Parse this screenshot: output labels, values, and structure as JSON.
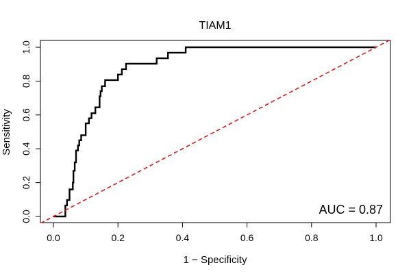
{
  "chart_data": {
    "type": "line",
    "title": "TIAM1",
    "xlabel": "1 − Specificity",
    "ylabel": "Sensitivity",
    "xlim": [
      0.0,
      1.0
    ],
    "ylim": [
      0.0,
      1.0
    ],
    "xticks": [
      "0.0",
      "0.2",
      "0.4",
      "0.6",
      "0.8",
      "1.0"
    ],
    "yticks": [
      "0.0",
      "0.2",
      "0.4",
      "0.6",
      "0.8",
      "1.0"
    ],
    "annotation": "AUC = 0.87",
    "series": [
      {
        "name": "ROC curve",
        "color": "#000000",
        "style": "solid",
        "x": [
          0.0,
          0.037,
          0.037,
          0.042,
          0.042,
          0.05,
          0.05,
          0.06,
          0.06,
          0.062,
          0.062,
          0.066,
          0.066,
          0.07,
          0.07,
          0.076,
          0.076,
          0.08,
          0.08,
          0.086,
          0.086,
          0.1,
          0.1,
          0.11,
          0.11,
          0.118,
          0.118,
          0.13,
          0.13,
          0.143,
          0.143,
          0.146,
          0.146,
          0.15,
          0.15,
          0.16,
          0.16,
          0.2,
          0.2,
          0.212,
          0.212,
          0.225,
          0.225,
          0.32,
          0.32,
          0.355,
          0.355,
          0.41,
          0.41,
          1.0
        ],
        "y": [
          0.0,
          0.0,
          0.065,
          0.065,
          0.097,
          0.097,
          0.16,
          0.16,
          0.2,
          0.2,
          0.27,
          0.27,
          0.32,
          0.32,
          0.39,
          0.39,
          0.42,
          0.42,
          0.45,
          0.45,
          0.48,
          0.48,
          0.55,
          0.55,
          0.58,
          0.58,
          0.61,
          0.61,
          0.645,
          0.645,
          0.71,
          0.71,
          0.74,
          0.74,
          0.77,
          0.77,
          0.806,
          0.806,
          0.839,
          0.839,
          0.871,
          0.871,
          0.903,
          0.903,
          0.935,
          0.935,
          0.968,
          0.968,
          1.0,
          1.0
        ]
      },
      {
        "name": "Reference line",
        "color": "#e41a1c",
        "style": "dashed",
        "x": [
          -0.04,
          1.04
        ],
        "y": [
          -0.04,
          1.04
        ]
      }
    ]
  }
}
